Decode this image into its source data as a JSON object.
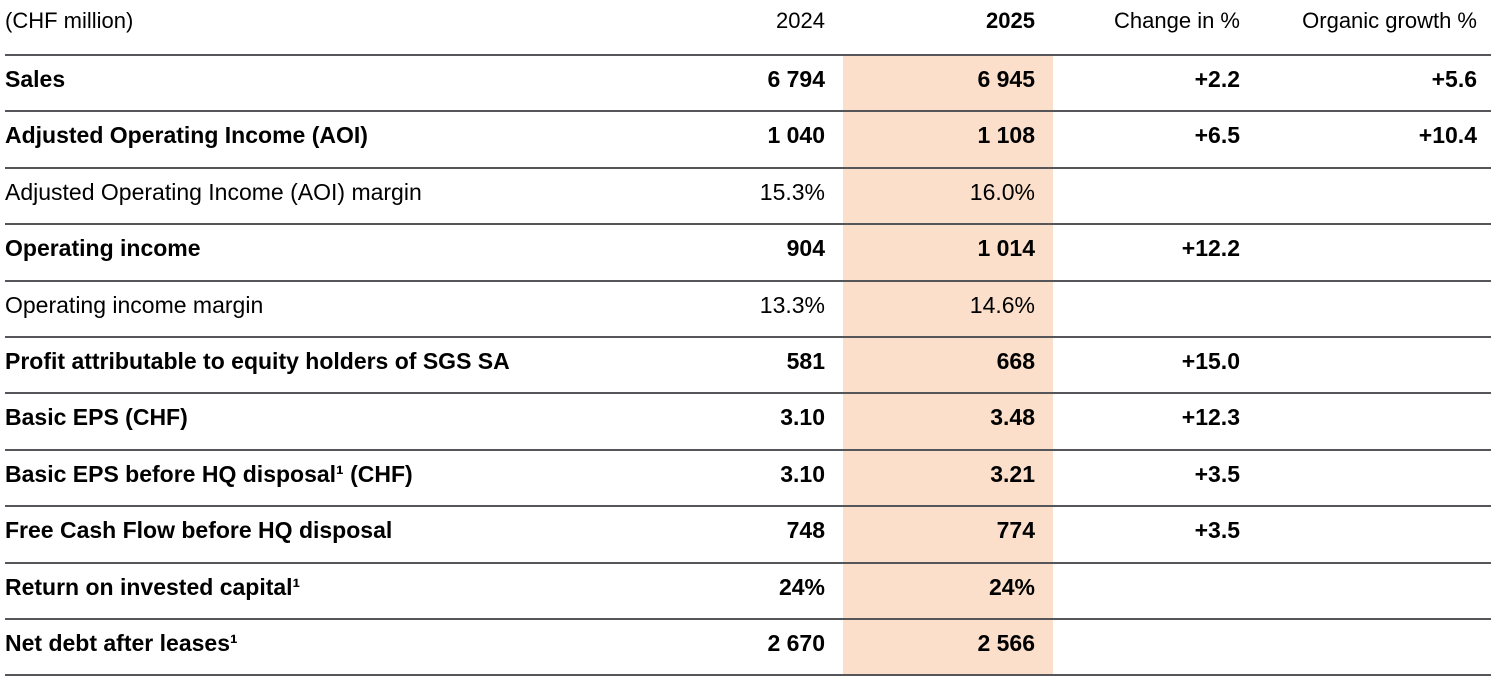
{
  "colors": {
    "highlight_band": "#fbdfca",
    "rule_line": "#55565a",
    "text": "#000000"
  },
  "table": {
    "unit_label": "(CHF million)",
    "columns": {
      "y2024": "2024",
      "y2025": "2025",
      "change": "Change in %",
      "organic": "Organic growth %"
    },
    "rows": [
      {
        "label": "Sales",
        "y2024": "6 794",
        "y2025": "6 945",
        "change": "+2.2",
        "organic": "+5.6"
      },
      {
        "label": "Adjusted Operating Income (AOI)",
        "y2024": "1 040",
        "y2025": "1 108",
        "change": "+6.5",
        "organic": "+10.4"
      },
      {
        "label": "Adjusted Operating Income (AOI) margin",
        "y2024": "15.3%",
        "y2025": "16.0%",
        "change": "",
        "organic": ""
      },
      {
        "label": "Operating income",
        "y2024": "904",
        "y2025": "1 014",
        "change": "+12.2",
        "organic": ""
      },
      {
        "label": "Operating income margin",
        "y2024": "13.3%",
        "y2025": "14.6%",
        "change": "",
        "organic": ""
      },
      {
        "label": "Profit attributable to equity holders of SGS SA",
        "y2024": "581",
        "y2025": "668",
        "change": "+15.0",
        "organic": ""
      },
      {
        "label": "Basic EPS (CHF)",
        "y2024": "3.10",
        "y2025": "3.48",
        "change": "+12.3",
        "organic": ""
      },
      {
        "label": "Basic EPS before HQ disposal¹ (CHF)",
        "y2024": "3.10",
        "y2025": "3.21",
        "change": "+3.5",
        "organic": ""
      },
      {
        "label": "Free Cash Flow before HQ disposal",
        "y2024": "748",
        "y2025": "774",
        "change": "+3.5",
        "organic": ""
      },
      {
        "label": "Return on invested capital¹",
        "y2024": "24%",
        "y2025": "24%",
        "change": "",
        "organic": ""
      },
      {
        "label": "Net debt after leases¹",
        "y2024": "2 670",
        "y2025": "2 566",
        "change": "",
        "organic": ""
      }
    ]
  }
}
